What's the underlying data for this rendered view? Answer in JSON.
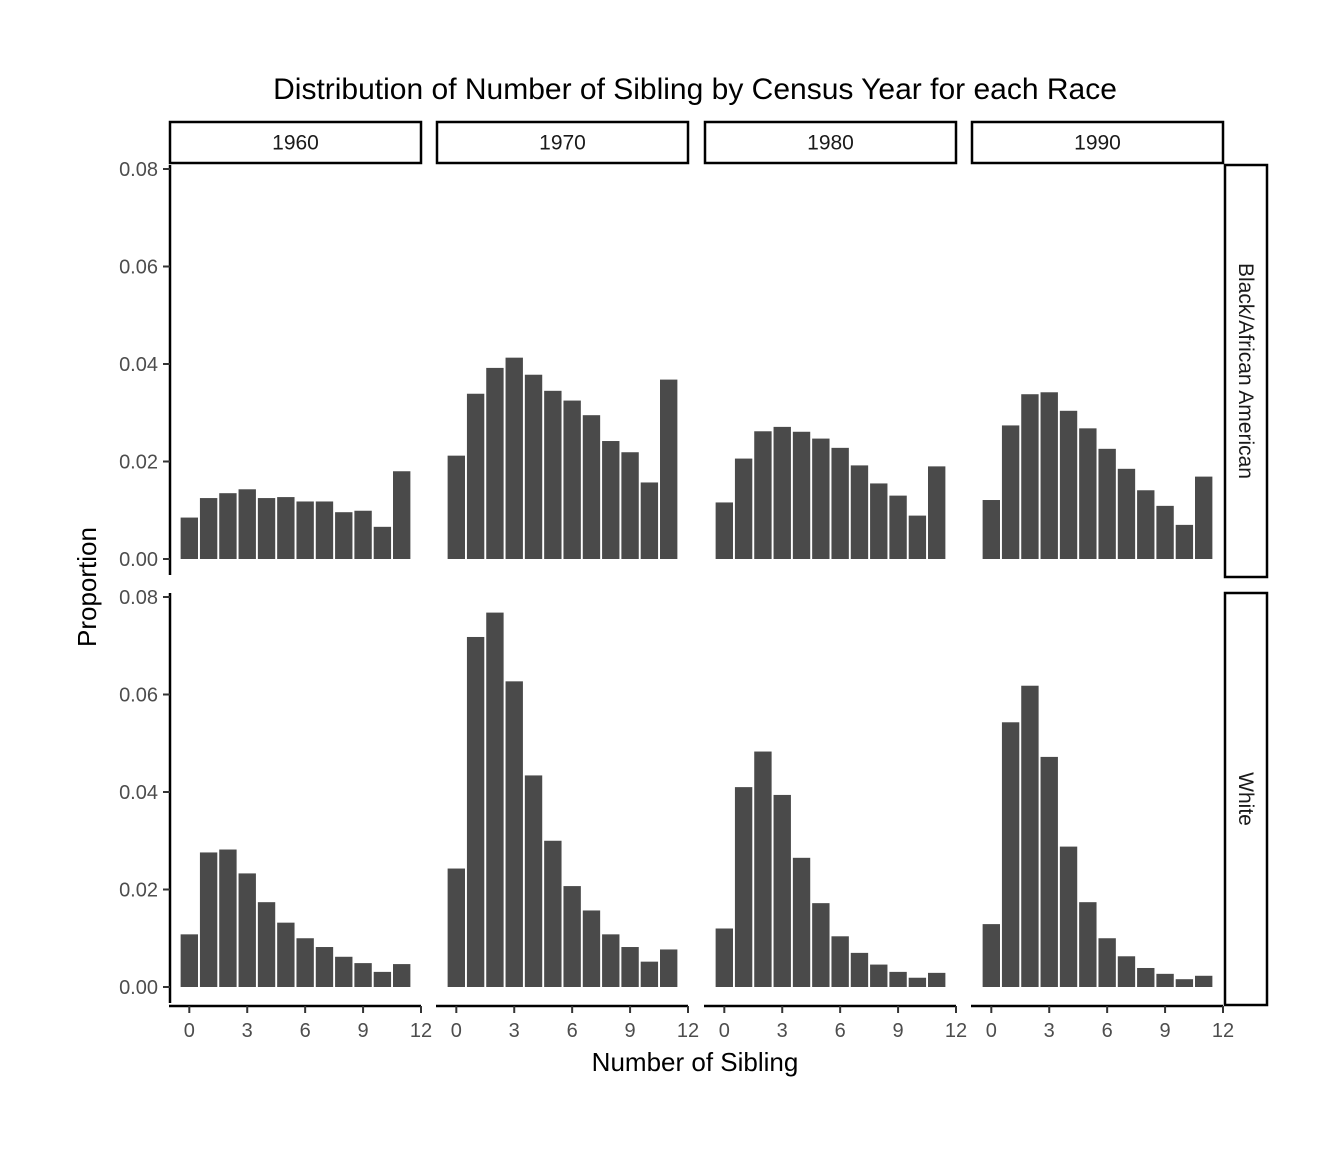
{
  "chart_data": {
    "type": "bar",
    "title": "Distribution of Number of Sibling by Census Year for each Race",
    "xlabel": "Number of Sibling",
    "ylabel": "Proportion",
    "facet_columns": [
      "1960",
      "1970",
      "1980",
      "1990"
    ],
    "facet_rows": [
      "Black/African American",
      "White"
    ],
    "x": [
      0,
      1,
      2,
      3,
      4,
      5,
      6,
      7,
      8,
      9,
      10,
      11
    ],
    "xticks": [
      0,
      3,
      6,
      9,
      12
    ],
    "xlim": [
      -1,
      12
    ],
    "yticks": [
      0.0,
      0.02,
      0.04,
      0.06,
      0.08
    ],
    "ytick_labels": [
      "0.00",
      "0.02",
      "0.04",
      "0.06",
      "0.08"
    ],
    "ylim": [
      0,
      0.08
    ],
    "bar_color": "#4a4a4a",
    "grid": false,
    "panels": [
      {
        "column": "1960",
        "row": "Black/African American",
        "values": [
          0.0085,
          0.0125,
          0.0135,
          0.0143,
          0.0125,
          0.0127,
          0.0118,
          0.0118,
          0.0096,
          0.0099,
          0.0066,
          0.018
        ]
      },
      {
        "column": "1970",
        "row": "Black/African American",
        "values": [
          0.0212,
          0.0339,
          0.0392,
          0.0413,
          0.0378,
          0.0345,
          0.0325,
          0.0295,
          0.0242,
          0.0219,
          0.0157,
          0.0368
        ]
      },
      {
        "column": "1980",
        "row": "Black/African American",
        "values": [
          0.0116,
          0.0206,
          0.0262,
          0.0271,
          0.0261,
          0.0247,
          0.0228,
          0.0192,
          0.0155,
          0.013,
          0.0089,
          0.019
        ]
      },
      {
        "column": "1990",
        "row": "Black/African American",
        "values": [
          0.0121,
          0.0274,
          0.0338,
          0.0342,
          0.0304,
          0.0268,
          0.0226,
          0.0185,
          0.0141,
          0.0109,
          0.007,
          0.0169
        ]
      },
      {
        "column": "1960",
        "row": "White",
        "values": [
          0.0108,
          0.0276,
          0.0282,
          0.0233,
          0.0174,
          0.0132,
          0.01,
          0.0082,
          0.0062,
          0.0049,
          0.0031,
          0.0047
        ]
      },
      {
        "column": "1970",
        "row": "White",
        "values": [
          0.0243,
          0.0718,
          0.0768,
          0.0627,
          0.0434,
          0.03,
          0.0207,
          0.0157,
          0.0108,
          0.0082,
          0.0052,
          0.0077
        ]
      },
      {
        "column": "1980",
        "row": "White",
        "values": [
          0.012,
          0.041,
          0.0483,
          0.0394,
          0.0265,
          0.0172,
          0.0104,
          0.007,
          0.0046,
          0.0031,
          0.0019,
          0.0029
        ]
      },
      {
        "column": "1990",
        "row": "White",
        "values": [
          0.0129,
          0.0543,
          0.0618,
          0.0472,
          0.0288,
          0.0174,
          0.01,
          0.0063,
          0.0039,
          0.0027,
          0.0016,
          0.0023
        ]
      }
    ]
  }
}
